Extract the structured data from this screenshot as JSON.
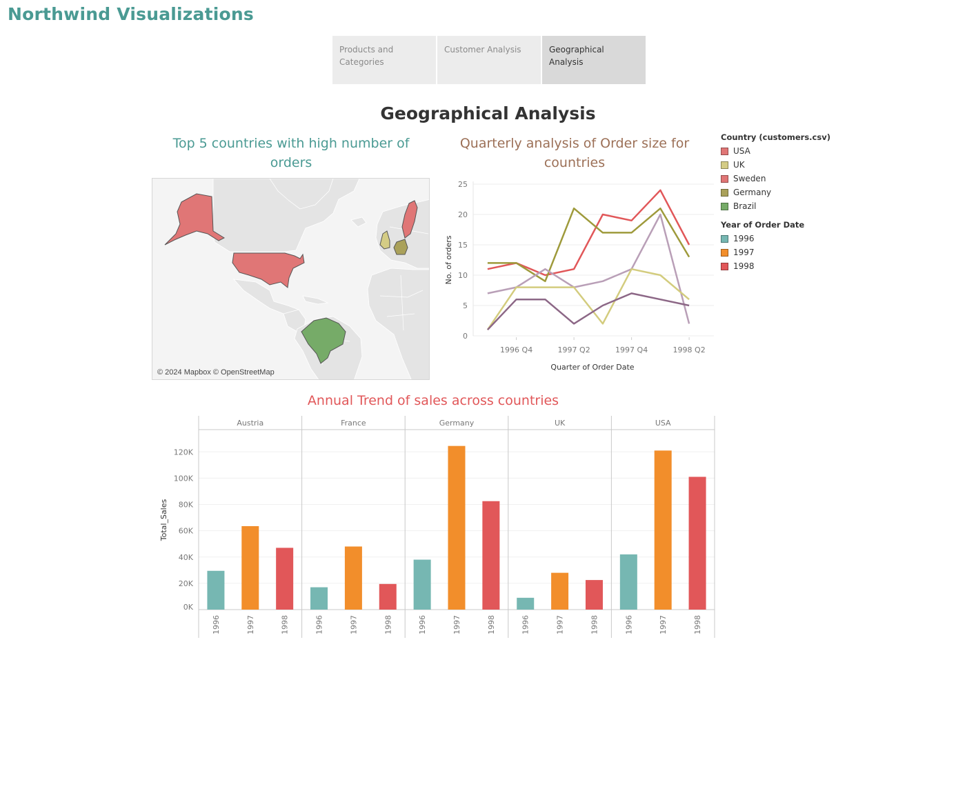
{
  "app_title": "Northwind Visualizations",
  "tabs": [
    {
      "label": "Products and Categories",
      "active": false
    },
    {
      "label": "Customer Analysis",
      "active": false
    },
    {
      "label": "Geographical Analysis",
      "active": true
    }
  ],
  "page_title": "Geographical Analysis",
  "map": {
    "title": "Top 5 countries with high number of orders",
    "attribution": "© 2024 Mapbox © OpenStreetMap",
    "highlighted": [
      {
        "country": "USA",
        "color": "#e07676"
      },
      {
        "country": "Sweden",
        "color": "#e07676"
      },
      {
        "country": "UK",
        "color": "#d4cc85"
      },
      {
        "country": "Germany",
        "color": "#aaa15a"
      },
      {
        "country": "Brazil",
        "color": "#76ab68"
      }
    ]
  },
  "line_chart": {
    "title": "Quarterly analysis of Order size for countries",
    "chart_data": {
      "type": "line",
      "xlabel": "Quarter of Order Date",
      "ylabel": "No. of orders",
      "x_ticks": [
        "1996 Q4",
        "1997 Q2",
        "1997 Q4",
        "1998 Q2"
      ],
      "x": [
        "1996 Q3",
        "1996 Q4",
        "1997 Q1",
        "1997 Q2",
        "1997 Q3",
        "1997 Q4",
        "1998 Q1",
        "1998 Q2"
      ],
      "ylim": [
        0,
        25
      ],
      "y_ticks": [
        0,
        5,
        10,
        15,
        20,
        25
      ],
      "series": [
        {
          "color": "#e15759",
          "values": [
            11,
            12,
            10,
            11,
            20,
            19,
            24,
            15
          ]
        },
        {
          "color": "#9e9a3b",
          "values": [
            12,
            12,
            9,
            21,
            17,
            17,
            21,
            13
          ]
        },
        {
          "color": "#b99fb7",
          "values": [
            7,
            8,
            11,
            8,
            9,
            11,
            20,
            2
          ]
        },
        {
          "color": "#d3cc7e",
          "values": [
            1,
            8,
            8,
            8,
            2,
            11,
            10,
            6
          ]
        },
        {
          "color": "#8c6786",
          "values": [
            1,
            6,
            6,
            2,
            5,
            7,
            6,
            5
          ]
        }
      ]
    }
  },
  "legend_country": {
    "title": "Country (customers.csv)",
    "items": [
      {
        "label": "USA",
        "color": "#e07676"
      },
      {
        "label": "UK",
        "color": "#d4cc85"
      },
      {
        "label": "Sweden",
        "color": "#e07676"
      },
      {
        "label": "Germany",
        "color": "#aaa15a"
      },
      {
        "label": "Brazil",
        "color": "#76ab68"
      }
    ]
  },
  "legend_year": {
    "title": "Year of Order Date",
    "items": [
      {
        "label": "1996",
        "color": "#76b7b2"
      },
      {
        "label": "1997",
        "color": "#f28e2b"
      },
      {
        "label": "1998",
        "color": "#e15759"
      }
    ]
  },
  "bar_chart": {
    "title": "Annual Trend of sales across countries",
    "chart_data": {
      "type": "bar",
      "ylabel": "Total_Sales",
      "ylim": [
        0,
        128000
      ],
      "y_ticks": [
        {
          "value": 0,
          "label": "0K"
        },
        {
          "value": 20000,
          "label": "20K"
        },
        {
          "value": 40000,
          "label": "40K"
        },
        {
          "value": 60000,
          "label": "60K"
        },
        {
          "value": 80000,
          "label": "80K"
        },
        {
          "value": 100000,
          "label": "100K"
        },
        {
          "value": 120000,
          "label": "120K"
        }
      ],
      "years": [
        "1996",
        "1997",
        "1998"
      ],
      "year_colors": [
        "#76b7b2",
        "#f28e2b",
        "#e15759"
      ],
      "panels": [
        {
          "country": "Austria",
          "values": [
            29500,
            63500,
            47000
          ]
        },
        {
          "country": "France",
          "values": [
            17000,
            48000,
            19500
          ]
        },
        {
          "country": "Germany",
          "values": [
            38000,
            124500,
            82500
          ]
        },
        {
          "country": "UK",
          "values": [
            9000,
            28000,
            22500
          ]
        },
        {
          "country": "USA",
          "values": [
            42000,
            121000,
            101000
          ]
        }
      ]
    }
  }
}
